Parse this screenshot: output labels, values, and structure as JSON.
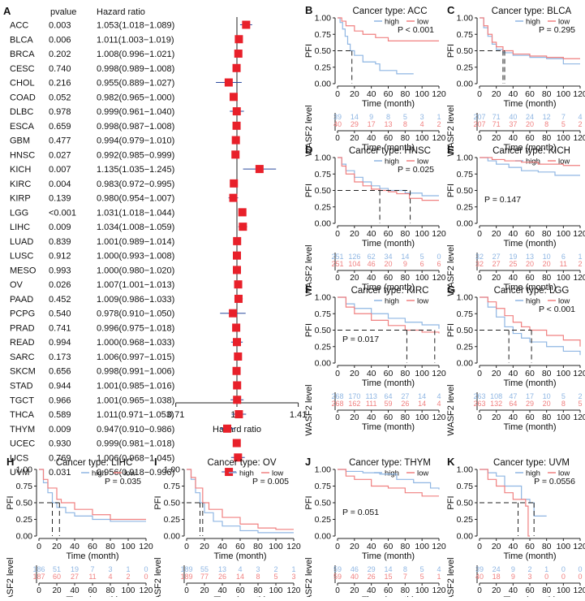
{
  "colors": {
    "high": "#8fb6e3",
    "low": "#f08080",
    "marker": "#e8202a",
    "axis": "#222222",
    "dash": "#222222"
  },
  "forest": {
    "panel_letter": "A",
    "col_pvalue": "pvalue",
    "col_hr": "Hazard ratio",
    "xlabel": "Hazard ratio",
    "ticks": [
      "0.71",
      "1.0",
      "1.41"
    ],
    "rows": [
      {
        "type": "ACC",
        "p": "0.003",
        "hr": "1.053(1.018−1.089)",
        "v": 1.053,
        "lo": 1.018,
        "hi": 1.089
      },
      {
        "type": "BLCA",
        "p": "0.006",
        "hr": "1.011(1.003−1.019)",
        "v": 1.011,
        "lo": 1.003,
        "hi": 1.019
      },
      {
        "type": "BRCA",
        "p": "0.202",
        "hr": "1.008(0.996−1.021)",
        "v": 1.008,
        "lo": 0.996,
        "hi": 1.021
      },
      {
        "type": "CESC",
        "p": "0.740",
        "hr": "0.998(0.989−1.008)",
        "v": 0.998,
        "lo": 0.989,
        "hi": 1.008
      },
      {
        "type": "CHOL",
        "p": "0.216",
        "hr": "0.955(0.889−1.027)",
        "v": 0.955,
        "lo": 0.889,
        "hi": 1.027
      },
      {
        "type": "COAD",
        "p": "0.052",
        "hr": "0.982(0.965−1.000)",
        "v": 0.982,
        "lo": 0.965,
        "hi": 1.0
      },
      {
        "type": "DLBC",
        "p": "0.978",
        "hr": "0.999(0.961−1.040)",
        "v": 0.999,
        "lo": 0.961,
        "hi": 1.04
      },
      {
        "type": "ESCA",
        "p": "0.659",
        "hr": "0.998(0.987−1.008)",
        "v": 0.998,
        "lo": 0.987,
        "hi": 1.008
      },
      {
        "type": "GBM",
        "p": "0.477",
        "hr": "0.994(0.979−1.010)",
        "v": 0.994,
        "lo": 0.979,
        "hi": 1.01
      },
      {
        "type": "HNSC",
        "p": "0.027",
        "hr": "0.992(0.985−0.999)",
        "v": 0.992,
        "lo": 0.985,
        "hi": 0.999
      },
      {
        "type": "KICH",
        "p": "0.007",
        "hr": "1.135(1.035−1.245)",
        "v": 1.135,
        "lo": 1.035,
        "hi": 1.245
      },
      {
        "type": "KIRC",
        "p": "0.004",
        "hr": "0.983(0.972−0.995)",
        "v": 0.983,
        "lo": 0.972,
        "hi": 0.995
      },
      {
        "type": "KIRP",
        "p": "0.139",
        "hr": "0.980(0.954−1.007)",
        "v": 0.98,
        "lo": 0.954,
        "hi": 1.007
      },
      {
        "type": "LGG",
        "p": "<0.001",
        "hr": "1.031(1.018−1.044)",
        "v": 1.031,
        "lo": 1.018,
        "hi": 1.044
      },
      {
        "type": "LIHC",
        "p": "0.009",
        "hr": "1.034(1.008−1.059)",
        "v": 1.034,
        "lo": 1.008,
        "hi": 1.059
      },
      {
        "type": "LUAD",
        "p": "0.839",
        "hr": "1.001(0.989−1.014)",
        "v": 1.001,
        "lo": 0.989,
        "hi": 1.014
      },
      {
        "type": "LUSC",
        "p": "0.912",
        "hr": "1.000(0.993−1.008)",
        "v": 1.0,
        "lo": 0.993,
        "hi": 1.008
      },
      {
        "type": "MESO",
        "p": "0.993",
        "hr": "1.000(0.980−1.020)",
        "v": 1.0,
        "lo": 0.98,
        "hi": 1.02
      },
      {
        "type": "OV",
        "p": "0.026",
        "hr": "1.007(1.001−1.013)",
        "v": 1.007,
        "lo": 1.001,
        "hi": 1.013
      },
      {
        "type": "PAAD",
        "p": "0.452",
        "hr": "1.009(0.986−1.033)",
        "v": 1.009,
        "lo": 0.986,
        "hi": 1.033
      },
      {
        "type": "PCPG",
        "p": "0.540",
        "hr": "0.978(0.910−1.050)",
        "v": 0.978,
        "lo": 0.91,
        "hi": 1.05
      },
      {
        "type": "PRAD",
        "p": "0.741",
        "hr": "0.996(0.975−1.018)",
        "v": 0.996,
        "lo": 0.975,
        "hi": 1.018
      },
      {
        "type": "READ",
        "p": "0.994",
        "hr": "1.000(0.968−1.033)",
        "v": 1.0,
        "lo": 0.968,
        "hi": 1.033
      },
      {
        "type": "SARC",
        "p": "0.173",
        "hr": "1.006(0.997−1.015)",
        "v": 1.006,
        "lo": 0.997,
        "hi": 1.015
      },
      {
        "type": "SKCM",
        "p": "0.656",
        "hr": "0.998(0.991−1.006)",
        "v": 0.998,
        "lo": 0.991,
        "hi": 1.006
      },
      {
        "type": "STAD",
        "p": "0.944",
        "hr": "1.001(0.985−1.016)",
        "v": 1.001,
        "lo": 0.985,
        "hi": 1.016
      },
      {
        "type": "TGCT",
        "p": "0.966",
        "hr": "1.001(0.965−1.038)",
        "v": 1.001,
        "lo": 0.965,
        "hi": 1.038
      },
      {
        "type": "THCA",
        "p": "0.589",
        "hr": "1.011(0.971−1.053)",
        "v": 1.011,
        "lo": 0.971,
        "hi": 1.053
      },
      {
        "type": "THYM",
        "p": "0.009",
        "hr": "0.947(0.910−0.986)",
        "v": 0.947,
        "lo": 0.91,
        "hi": 0.986
      },
      {
        "type": "UCEC",
        "p": "0.930",
        "hr": "0.999(0.981−1.018)",
        "v": 0.999,
        "lo": 0.981,
        "hi": 1.018
      },
      {
        "type": "UCS",
        "p": "0.769",
        "hr": "1.006(0.968−1.045)",
        "v": 1.006,
        "lo": 0.968,
        "hi": 1.045
      },
      {
        "type": "UVM",
        "p": "0.031",
        "hr": "0.956(0.918−0.996)",
        "v": 0.956,
        "lo": 0.918,
        "hi": 0.996
      }
    ]
  },
  "km_common": {
    "ylabel": "PFI",
    "xlabel": "Time (month)",
    "risk_ylabel": "WASF2 level",
    "legend_high": "high",
    "legend_low": "low",
    "yticks": [
      "0.00",
      "0.25",
      "0.50",
      "0.75",
      "1.00"
    ],
    "xticks": [
      "0",
      "20",
      "40",
      "60",
      "80",
      "100",
      "120"
    ]
  },
  "chart_data": [
    {
      "type": "line",
      "panel": "B",
      "title": "Cancer type: ACC",
      "pvalue": "P < 0.001",
      "high": [
        [
          0,
          1
        ],
        [
          3,
          0.93
        ],
        [
          6,
          0.83
        ],
        [
          9,
          0.72
        ],
        [
          12,
          0.6
        ],
        [
          15,
          0.5
        ],
        [
          20,
          0.43
        ],
        [
          30,
          0.33
        ],
        [
          45,
          0.3
        ],
        [
          50,
          0.2
        ],
        [
          70,
          0.15
        ],
        [
          90,
          0.15
        ]
      ],
      "low": [
        [
          0,
          1
        ],
        [
          5,
          0.95
        ],
        [
          10,
          0.88
        ],
        [
          20,
          0.8
        ],
        [
          30,
          0.75
        ],
        [
          45,
          0.7
        ],
        [
          60,
          0.65
        ],
        [
          80,
          0.65
        ],
        [
          120,
          0.65
        ]
      ],
      "medians": [
        17
      ],
      "risk_high": [
        "39",
        "14",
        "9",
        "8",
        "5",
        "3",
        "1"
      ],
      "risk_low": [
        "40",
        "29",
        "17",
        "13",
        "8",
        "4",
        "2"
      ]
    },
    {
      "type": "line",
      "panel": "C",
      "title": "Cancer type: BLCA",
      "pvalue": "P = 0.295",
      "high": [
        [
          0,
          1
        ],
        [
          5,
          0.85
        ],
        [
          10,
          0.72
        ],
        [
          15,
          0.6
        ],
        [
          20,
          0.52
        ],
        [
          28,
          0.47
        ],
        [
          40,
          0.43
        ],
        [
          60,
          0.4
        ],
        [
          80,
          0.38
        ],
        [
          100,
          0.3
        ],
        [
          120,
          0.3
        ]
      ],
      "low": [
        [
          0,
          1
        ],
        [
          5,
          0.88
        ],
        [
          10,
          0.75
        ],
        [
          15,
          0.63
        ],
        [
          20,
          0.56
        ],
        [
          28,
          0.5
        ],
        [
          40,
          0.45
        ],
        [
          60,
          0.42
        ],
        [
          80,
          0.4
        ],
        [
          100,
          0.38
        ],
        [
          120,
          0.38
        ]
      ],
      "medians": [
        28,
        30
      ],
      "risk_high": [
        "207",
        "71",
        "40",
        "24",
        "12",
        "7",
        "4"
      ],
      "risk_low": [
        "207",
        "71",
        "37",
        "20",
        "8",
        "5",
        "2"
      ]
    },
    {
      "type": "line",
      "panel": "D",
      "title": "Cancer type: HNSC",
      "pvalue": "P = 0.025",
      "high": [
        [
          0,
          1
        ],
        [
          5,
          0.9
        ],
        [
          10,
          0.8
        ],
        [
          20,
          0.7
        ],
        [
          30,
          0.63
        ],
        [
          40,
          0.57
        ],
        [
          50,
          0.53
        ],
        [
          60,
          0.5
        ],
        [
          80,
          0.46
        ],
        [
          100,
          0.42
        ],
        [
          120,
          0.42
        ]
      ],
      "low": [
        [
          0,
          1
        ],
        [
          5,
          0.87
        ],
        [
          10,
          0.75
        ],
        [
          20,
          0.63
        ],
        [
          30,
          0.57
        ],
        [
          40,
          0.52
        ],
        [
          50,
          0.5
        ],
        [
          60,
          0.48
        ],
        [
          70,
          0.45
        ],
        [
          85,
          0.38
        ],
        [
          100,
          0.35
        ],
        [
          120,
          0.35
        ]
      ],
      "medians": [
        50,
        86
      ],
      "risk_high": [
        "251",
        "126",
        "62",
        "34",
        "14",
        "5",
        "0"
      ],
      "risk_low": [
        "251",
        "104",
        "46",
        "20",
        "9",
        "6",
        "6"
      ]
    },
    {
      "type": "line",
      "panel": "E",
      "title": "Cancer type: KICH",
      "pvalue": "P = 0.147",
      "high": [
        [
          0,
          1
        ],
        [
          10,
          0.95
        ],
        [
          20,
          0.9
        ],
        [
          35,
          0.85
        ],
        [
          50,
          0.8
        ],
        [
          70,
          0.78
        ],
        [
          90,
          0.73
        ],
        [
          120,
          0.73
        ]
      ],
      "low": [
        [
          0,
          1
        ],
        [
          15,
          0.97
        ],
        [
          30,
          0.95
        ],
        [
          50,
          0.93
        ],
        [
          70,
          0.9
        ],
        [
          100,
          0.88
        ],
        [
          120,
          0.88
        ]
      ],
      "medians": [],
      "risk_high": [
        "32",
        "27",
        "19",
        "13",
        "10",
        "6",
        "1"
      ],
      "risk_low": [
        "32",
        "27",
        "25",
        "20",
        "20",
        "11",
        "2"
      ]
    },
    {
      "type": "line",
      "panel": "F",
      "title": "Cancer type: KIRC",
      "pvalue": "P = 0.017",
      "high": [
        [
          0,
          1
        ],
        [
          10,
          0.9
        ],
        [
          20,
          0.83
        ],
        [
          40,
          0.75
        ],
        [
          60,
          0.68
        ],
        [
          80,
          0.62
        ],
        [
          100,
          0.58
        ],
        [
          120,
          0.52
        ]
      ],
      "low": [
        [
          0,
          1
        ],
        [
          10,
          0.85
        ],
        [
          20,
          0.75
        ],
        [
          40,
          0.65
        ],
        [
          60,
          0.57
        ],
        [
          80,
          0.5
        ],
        [
          100,
          0.47
        ],
        [
          120,
          0.45
        ]
      ],
      "medians": [
        82,
        115
      ],
      "risk_high": [
        "268",
        "170",
        "113",
        "64",
        "27",
        "14",
        "4"
      ],
      "risk_low": [
        "268",
        "162",
        "111",
        "59",
        "26",
        "14",
        "4"
      ]
    },
    {
      "type": "line",
      "panel": "G",
      "title": "Cancer type: LGG",
      "pvalue": "P < 0.001",
      "high": [
        [
          0,
          1
        ],
        [
          10,
          0.85
        ],
        [
          20,
          0.7
        ],
        [
          30,
          0.55
        ],
        [
          40,
          0.45
        ],
        [
          50,
          0.38
        ],
        [
          60,
          0.32
        ],
        [
          80,
          0.25
        ],
        [
          100,
          0.18
        ],
        [
          120,
          0.12
        ]
      ],
      "low": [
        [
          0,
          1
        ],
        [
          10,
          0.93
        ],
        [
          20,
          0.83
        ],
        [
          30,
          0.72
        ],
        [
          40,
          0.62
        ],
        [
          50,
          0.55
        ],
        [
          60,
          0.5
        ],
        [
          80,
          0.42
        ],
        [
          100,
          0.35
        ],
        [
          120,
          0.25
        ]
      ],
      "medians": [
        35,
        62
      ],
      "risk_high": [
        "263",
        "108",
        "47",
        "17",
        "10",
        "5",
        "2"
      ],
      "risk_low": [
        "263",
        "132",
        "64",
        "29",
        "20",
        "8",
        "5"
      ]
    },
    {
      "type": "line",
      "panel": "H",
      "title": "Cancer type: LIHC",
      "pvalue": "P = 0.035",
      "high": [
        [
          0,
          1
        ],
        [
          5,
          0.8
        ],
        [
          10,
          0.65
        ],
        [
          15,
          0.5
        ],
        [
          20,
          0.43
        ],
        [
          30,
          0.35
        ],
        [
          40,
          0.3
        ],
        [
          60,
          0.25
        ],
        [
          80,
          0.22
        ],
        [
          120,
          0.22
        ]
      ],
      "low": [
        [
          0,
          1
        ],
        [
          5,
          0.85
        ],
        [
          10,
          0.72
        ],
        [
          20,
          0.55
        ],
        [
          25,
          0.5
        ],
        [
          40,
          0.4
        ],
        [
          60,
          0.32
        ],
        [
          80,
          0.25
        ],
        [
          120,
          0.25
        ]
      ],
      "medians": [
        15,
        23
      ],
      "risk_high": [
        "186",
        "51",
        "19",
        "7",
        "3",
        "1",
        "0"
      ],
      "risk_low": [
        "187",
        "60",
        "27",
        "11",
        "4",
        "2",
        "0"
      ]
    },
    {
      "type": "line",
      "panel": "I",
      "title": "Cancer type: OV",
      "pvalue": "P = 0.005",
      "high": [
        [
          0,
          1
        ],
        [
          5,
          0.85
        ],
        [
          10,
          0.65
        ],
        [
          15,
          0.5
        ],
        [
          20,
          0.35
        ],
        [
          30,
          0.22
        ],
        [
          40,
          0.15
        ],
        [
          60,
          0.08
        ],
        [
          80,
          0.05
        ],
        [
          120,
          0.05
        ]
      ],
      "low": [
        [
          0,
          1
        ],
        [
          5,
          0.88
        ],
        [
          10,
          0.72
        ],
        [
          18,
          0.5
        ],
        [
          25,
          0.4
        ],
        [
          40,
          0.28
        ],
        [
          60,
          0.18
        ],
        [
          80,
          0.12
        ],
        [
          100,
          0.1
        ],
        [
          120,
          0.1
        ]
      ],
      "medians": [
        15,
        18
      ],
      "risk_high": [
        "189",
        "55",
        "13",
        "4",
        "3",
        "2",
        "1"
      ],
      "risk_low": [
        "189",
        "77",
        "26",
        "14",
        "8",
        "5",
        "3"
      ]
    },
    {
      "type": "line",
      "panel": "J",
      "title": "Cancer type: THYM",
      "pvalue": "P = 0.051",
      "high": [
        [
          0,
          1
        ],
        [
          10,
          0.97
        ],
        [
          30,
          0.95
        ],
        [
          50,
          0.93
        ],
        [
          70,
          0.85
        ],
        [
          90,
          0.8
        ],
        [
          110,
          0.72
        ],
        [
          120,
          0.7
        ]
      ],
      "low": [
        [
          0,
          1
        ],
        [
          10,
          0.9
        ],
        [
          20,
          0.85
        ],
        [
          40,
          0.75
        ],
        [
          60,
          0.72
        ],
        [
          80,
          0.65
        ],
        [
          100,
          0.6
        ],
        [
          120,
          0.6
        ]
      ],
      "medians": [],
      "risk_high": [
        "59",
        "46",
        "29",
        "14",
        "8",
        "5",
        "4"
      ],
      "risk_low": [
        "59",
        "40",
        "26",
        "15",
        "7",
        "5",
        "1"
      ]
    },
    {
      "type": "line",
      "panel": "K",
      "title": "Cancer type: UVM",
      "pvalue": "P = 0.0556",
      "high": [
        [
          0,
          1
        ],
        [
          10,
          0.95
        ],
        [
          20,
          0.9
        ],
        [
          30,
          0.75
        ],
        [
          50,
          0.55
        ],
        [
          60,
          0.5
        ],
        [
          65,
          0.3
        ],
        [
          80,
          0.3
        ]
      ],
      "low": [
        [
          0,
          1
        ],
        [
          10,
          0.85
        ],
        [
          20,
          0.75
        ],
        [
          30,
          0.65
        ],
        [
          40,
          0.55
        ],
        [
          55,
          0.45
        ],
        [
          58,
          0
        ],
        [
          60,
          0
        ]
      ],
      "medians": [
        46,
        65
      ],
      "risk_high": [
        "39",
        "24",
        "9",
        "2",
        "1",
        "0",
        "0"
      ],
      "risk_low": [
        "40",
        "18",
        "9",
        "3",
        "0",
        "0",
        "0"
      ]
    }
  ]
}
